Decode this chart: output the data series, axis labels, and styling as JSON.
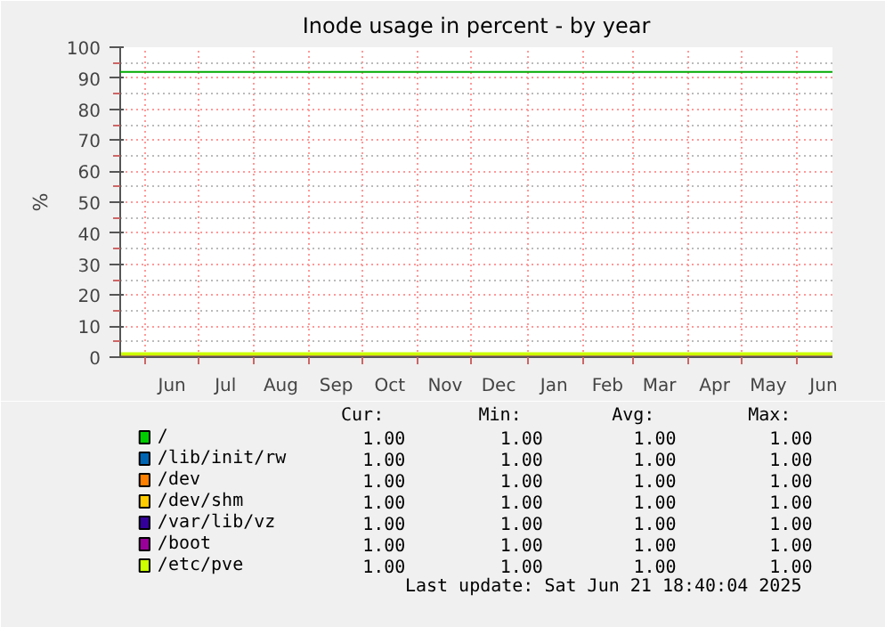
{
  "chart_data": {
    "type": "line",
    "title": "Inode usage in percent - by year",
    "ylabel": "%",
    "x": [
      "2024-05-18",
      "2025-06-21"
    ],
    "xlim": [
      "2024-05-18",
      "2025-06-21"
    ],
    "xticks": [
      {
        "value": "2024-06-01",
        "label": null
      },
      {
        "value": "2024-07-01",
        "label": null
      },
      {
        "value": "2024-08-01",
        "label": null
      },
      {
        "value": "2024-09-01",
        "label": null
      },
      {
        "value": "2024-10-01",
        "label": null
      },
      {
        "value": "2024-11-01",
        "label": null
      },
      {
        "value": "2024-12-01",
        "label": null
      },
      {
        "value": "2025-01-01",
        "label": null
      },
      {
        "value": "2025-02-01",
        "label": null
      },
      {
        "value": "2025-03-01",
        "label": null
      },
      {
        "value": "2025-04-01",
        "label": null
      },
      {
        "value": "2025-05-01",
        "label": null
      },
      {
        "value": "2025-06-01",
        "label": null
      },
      {
        "value": "2024-06-16",
        "label": "Jun"
      },
      {
        "value": "2024-07-16",
        "label": "Jul"
      },
      {
        "value": "2024-08-16",
        "label": "Aug"
      },
      {
        "value": "2024-09-16",
        "label": "Sep"
      },
      {
        "value": "2024-10-16",
        "label": "Oct"
      },
      {
        "value": "2024-11-16",
        "label": "Nov"
      },
      {
        "value": "2024-12-16",
        "label": "Dec"
      },
      {
        "value": "2025-01-16",
        "label": "Jan"
      },
      {
        "value": "2025-02-15",
        "label": "Feb"
      },
      {
        "value": "2025-03-16",
        "label": "Mar"
      },
      {
        "value": "2025-04-16",
        "label": "Apr"
      },
      {
        "value": "2025-05-16",
        "label": "May"
      },
      {
        "value": "2025-06-16",
        "label": "Jun"
      }
    ],
    "ylim": [
      0,
      100
    ],
    "yticks": [
      0,
      10,
      20,
      30,
      40,
      50,
      60,
      70,
      80,
      90,
      100,
      {
        "value": 5,
        "label": null
      },
      {
        "value": 15,
        "label": null
      },
      {
        "value": 25,
        "label": null
      },
      {
        "value": 35,
        "label": null
      },
      {
        "value": 45,
        "label": null
      },
      {
        "value": 55,
        "label": null
      },
      {
        "value": 65,
        "label": null
      },
      {
        "value": 75,
        "label": null
      },
      {
        "value": 85,
        "label": null
      },
      {
        "value": 95,
        "label": null
      }
    ],
    "grid": true,
    "legend": "bottom",
    "ref_lines": [
      {
        "axis": "y",
        "value": 92,
        "label": null,
        "color": "#00aa00"
      }
    ],
    "series": [
      {
        "name": "/",
        "color": "#00cc00",
        "values": [
          null,
          null
        ]
      },
      {
        "name": "/lib/init/rw",
        "color": "#0066b3",
        "values": [
          null,
          null
        ]
      },
      {
        "name": "/dev",
        "color": "#ff8000",
        "values": [
          null,
          null
        ]
      },
      {
        "name": "/dev/shm",
        "color": "#ffcc00",
        "values": [
          null,
          null
        ]
      },
      {
        "name": "/var/lib/vz",
        "color": "#330099",
        "values": [
          null,
          null
        ]
      },
      {
        "name": "/boot",
        "color": "#990099",
        "values": [
          null,
          null
        ]
      },
      {
        "name": "/etc/pve",
        "color": "#ccff00",
        "values": [
          1,
          1
        ]
      }
    ],
    "annotations": [
      "Cur:",
      "Min:",
      "Avg:",
      "Max:",
      "1.00",
      "1.00",
      "1.00",
      "1.00",
      "1.00",
      "1.00",
      "1.00",
      "1.00",
      "1.00",
      "1.00",
      "1.00",
      "1.00",
      "1.00",
      "1.00",
      "1.00",
      "1.00",
      "1.00",
      "1.00",
      "1.00",
      "1.00",
      "1.00",
      "1.00",
      "1.00",
      "1.00",
      "1.00",
      "1.00",
      "1.00",
      "1.00",
      "Last update:  Sat Jun 21 18:40:04 2025"
    ]
  }
}
